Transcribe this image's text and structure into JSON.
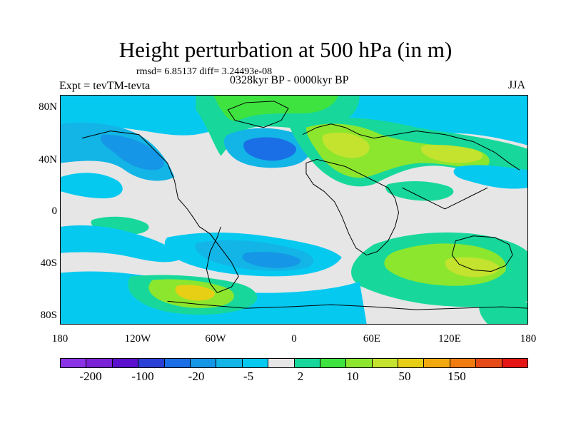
{
  "header": {
    "title": "Height perturbation at 500 hPa (in m)",
    "rmsd": "rmsd= 6.85137 diff= 3.24493e-08",
    "expt": "Expt = tevTM-tevta",
    "period": "0328kyr BP - 0000kyr BP",
    "season": "JJA"
  },
  "map": {
    "background_color": "#e6e6e6",
    "lat_labels": [
      "80N",
      "40N",
      "0",
      "40S",
      "80S"
    ],
    "lon_labels": [
      "180",
      "120W",
      "60W",
      "0",
      "60E",
      "120E",
      "180"
    ]
  },
  "colorbar": {
    "colors": [
      "#8a33e6",
      "#7a22d6",
      "#5a10cc",
      "#2a3fd6",
      "#1a6fe6",
      "#1596e6",
      "#12b5e6",
      "#06c9f0",
      "#e6e6e6",
      "#17d89a",
      "#3fe33f",
      "#8ce62e",
      "#c4e32e",
      "#e6cf15",
      "#f2a90f",
      "#f07b0f",
      "#e64a17",
      "#e61515"
    ],
    "labels": [
      "-200",
      "-100",
      "-20",
      "-5",
      "2",
      "10",
      "50",
      "150"
    ]
  },
  "field_colors": {
    "neg_light": "#06c9f0",
    "neg_mid": "#12b5e6",
    "neg_deep": "#1596e6",
    "neg_dark": "#1a6fe6",
    "pos_light": "#17d89a",
    "pos_mid": "#3fe33f",
    "pos_green": "#8ce62e",
    "pos_yellowgreen": "#c4e32e",
    "pos_yellow": "#e6cf15",
    "pos_orange": "#f2a90f"
  }
}
